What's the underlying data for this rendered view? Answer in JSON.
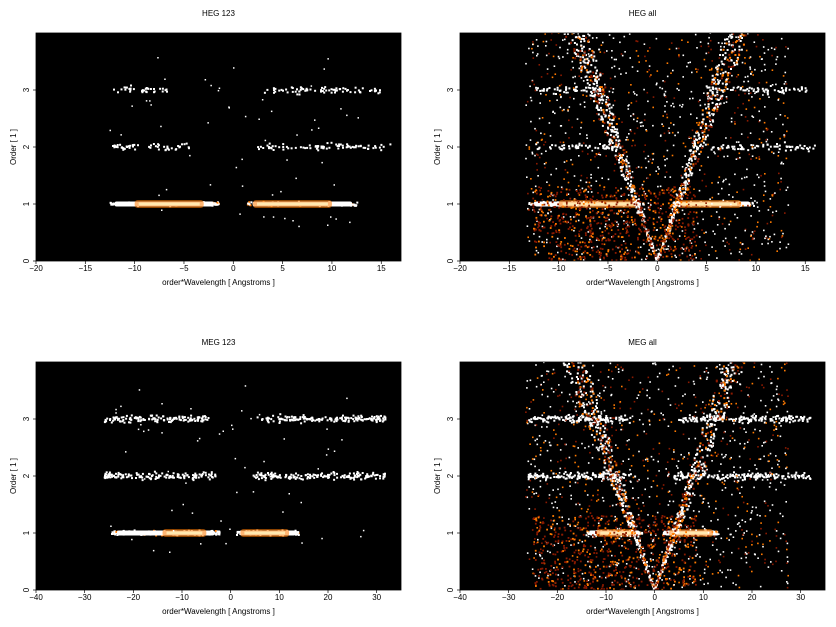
{
  "colors": {
    "background": "#000000",
    "hot_low": "#8b1a00",
    "hot_mid": "#ff7a00",
    "hot_high": "#ffffff"
  },
  "chart_data": [
    {
      "type": "heatmap",
      "title": "HEG 123",
      "xlabel": "order*Wavelength [ Angstroms ]",
      "ylabel": "Order [ 1 ]",
      "xlim": [
        -20,
        17
      ],
      "ylim": [
        0,
        4
      ],
      "xticks": [
        -20,
        -15,
        -10,
        -5,
        0,
        5,
        10,
        15
      ],
      "yticks": [
        0,
        1,
        2,
        3
      ],
      "bands": [
        {
          "order": 1,
          "ranges": [
            [
              -12.6,
              -1.4
            ],
            [
              1.4,
              12.6
            ]
          ],
          "hot_ranges": [
            [
              -10,
              -3
            ],
            [
              2,
              10
            ]
          ]
        },
        {
          "order": 2,
          "ranges": [
            [
              -12.8,
              -4.2
            ],
            [
              2.5,
              16
            ]
          ],
          "hot_ranges": []
        },
        {
          "order": 3,
          "ranges": [
            [
              -12.2,
              -6.5
            ],
            [
              3.2,
              15.5
            ]
          ],
          "hot_ranges": []
        }
      ],
      "wedge": false
    },
    {
      "type": "heatmap",
      "title": "HEG all",
      "xlabel": "order*Wavelength [ Angstroms ]",
      "ylabel": "Order [ 1 ]",
      "xlim": [
        -20,
        17
      ],
      "ylim": [
        0,
        4
      ],
      "xticks": [
        -20,
        -15,
        -10,
        -5,
        0,
        5,
        10,
        15
      ],
      "yticks": [
        0,
        1,
        2,
        3
      ],
      "bands": [
        {
          "order": 1,
          "ranges": [
            [
              -13,
              -1.3
            ],
            [
              1.3,
              9.8
            ]
          ],
          "hot_ranges": [
            [
              -10,
              -2
            ],
            [
              2,
              8.5
            ]
          ]
        },
        {
          "order": 2,
          "ranges": [
            [
              -12.5,
              -3.5
            ],
            [
              3.5,
              16
            ]
          ],
          "hot_ranges": []
        },
        {
          "order": 3,
          "ranges": [
            [
              -12.5,
              -5
            ],
            [
              5,
              15.5
            ]
          ],
          "hot_ranges": []
        }
      ],
      "wedge": true
    },
    {
      "type": "heatmap",
      "title": "MEG 123",
      "xlabel": "order*Wavelength [ Angstroms ]",
      "ylabel": "Order [ 1 ]",
      "xlim": [
        -40,
        35
      ],
      "ylim": [
        0,
        4
      ],
      "xticks": [
        -40,
        -30,
        -20,
        -10,
        0,
        10,
        20,
        30
      ],
      "yticks": [
        0,
        1,
        2,
        3
      ],
      "bands": [
        {
          "order": 1,
          "ranges": [
            [
              -24.5,
              -2.2
            ],
            [
              1.2,
              14
            ]
          ],
          "hot_ranges": [
            [
              -14,
              -5
            ],
            [
              2,
              12
            ]
          ]
        },
        {
          "order": 2,
          "ranges": [
            [
              -26,
              -2.5
            ],
            [
              4.5,
              32
            ]
          ],
          "hot_ranges": []
        },
        {
          "order": 3,
          "ranges": [
            [
              -26,
              -4.5
            ],
            [
              5.5,
              32
            ]
          ],
          "hot_ranges": []
        }
      ],
      "wedge": false
    },
    {
      "type": "heatmap",
      "title": "MEG all",
      "xlabel": "order*Wavelength [ Angstroms ]",
      "ylabel": "Order [ 1 ]",
      "xlim": [
        -40,
        35
      ],
      "ylim": [
        0,
        4
      ],
      "xticks": [
        -40,
        -30,
        -20,
        -10,
        0,
        10,
        20,
        30
      ],
      "yticks": [
        0,
        1,
        2,
        3
      ],
      "bands": [
        {
          "order": 1,
          "ranges": [
            [
              -14,
              -2.5
            ],
            [
              1.5,
              13
            ]
          ],
          "hot_ranges": [
            [
              -12,
              -4
            ],
            [
              3,
              12
            ]
          ]
        },
        {
          "order": 2,
          "ranges": [
            [
              -26,
              -4
            ],
            [
              4,
              32
            ]
          ],
          "hot_ranges": []
        },
        {
          "order": 3,
          "ranges": [
            [
              -26,
              -5
            ],
            [
              5,
              32
            ]
          ],
          "hot_ranges": []
        }
      ],
      "wedge": true
    }
  ]
}
